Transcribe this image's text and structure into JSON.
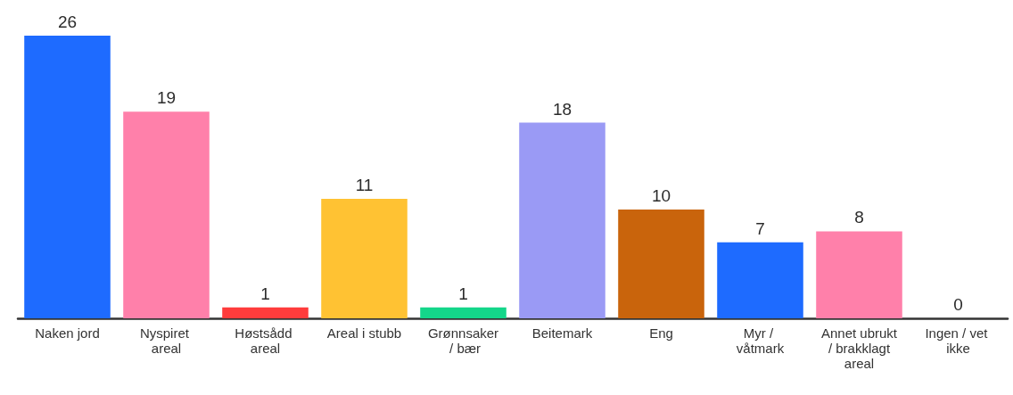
{
  "chart_data": {
    "type": "bar",
    "categories": [
      "Naken jord",
      "Nyspiret areal",
      "Høstsådd areal",
      "Areal i stubb",
      "Grønnsaker / bær",
      "Beitemark",
      "Eng",
      "Myr / våtmark",
      "Annet ubrukt / brakklagt areal",
      "Ingen / vet ikke"
    ],
    "values": [
      26,
      19,
      1,
      11,
      1,
      18,
      10,
      7,
      8,
      0
    ],
    "colors": [
      "#1e6bff",
      "#ff80aa",
      "#ff3c3c",
      "#ffc233",
      "#14d68a",
      "#9a9af5",
      "#c9640c",
      "#1e6bff",
      "#ff80aa",
      "#ff3c3c"
    ],
    "data_labels": true
  }
}
